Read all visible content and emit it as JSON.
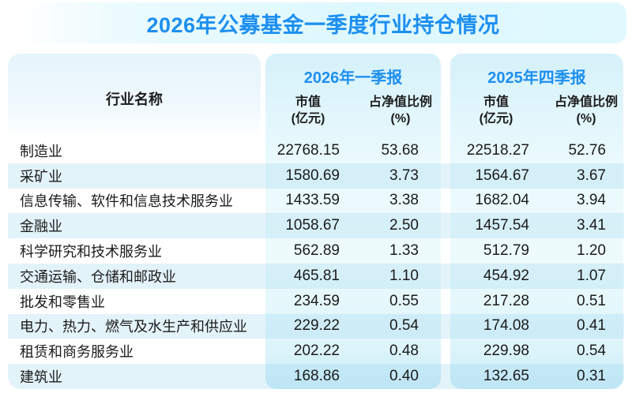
{
  "title": "2026年公募基金一季度行业持仓情况",
  "colors": {
    "accent_blue": "#1d8ff0",
    "panel_cyan": "#d6f1fa",
    "stripe_blue": "#e3f3fa"
  },
  "table": {
    "name_header": "行业名称",
    "groups": [
      {
        "label": "2026年一季报",
        "mv_header_line1": "市值",
        "mv_header_line2": "(亿元)",
        "pct_header_line1": "占净值比例",
        "pct_header_line2": "(%)"
      },
      {
        "label": "2025年四季报",
        "mv_header_line1": "市值",
        "mv_header_line2": "(亿元)",
        "pct_header_line1": "占净值比例",
        "pct_header_line2": "(%)"
      }
    ],
    "rows": [
      {
        "name": "制造业",
        "mv1": "22768.15",
        "pct1": "53.68",
        "mv2": "22518.27",
        "pct2": "52.76"
      },
      {
        "name": "采矿业",
        "mv1": "1580.69",
        "pct1": "3.73",
        "mv2": "1564.67",
        "pct2": "3.67"
      },
      {
        "name": "信息传输、软件和信息技术服务业",
        "mv1": "1433.59",
        "pct1": "3.38",
        "mv2": "1682.04",
        "pct2": "3.94"
      },
      {
        "name": "金融业",
        "mv1": "1058.67",
        "pct1": "2.50",
        "mv2": "1457.54",
        "pct2": "3.41"
      },
      {
        "name": "科学研究和技术服务业",
        "mv1": "562.89",
        "pct1": "1.33",
        "mv2": "512.79",
        "pct2": "1.20"
      },
      {
        "name": "交通运输、仓储和邮政业",
        "mv1": "465.81",
        "pct1": "1.10",
        "mv2": "454.92",
        "pct2": "1.07"
      },
      {
        "name": "批发和零售业",
        "mv1": "234.59",
        "pct1": "0.55",
        "mv2": "217.28",
        "pct2": "0.51"
      },
      {
        "name": "电力、热力、燃气及水生产和供应业",
        "mv1": "229.22",
        "pct1": "0.54",
        "mv2": "174.08",
        "pct2": "0.41"
      },
      {
        "name": "租赁和商务服务业",
        "mv1": "202.22",
        "pct1": "0.48",
        "mv2": "229.98",
        "pct2": "0.54"
      },
      {
        "name": "建筑业",
        "mv1": "168.86",
        "pct1": "0.40",
        "mv2": "132.65",
        "pct2": "0.31"
      }
    ]
  },
  "chart_data": {
    "type": "table",
    "title": "2026年公募基金一季度行业持仓情况",
    "columns": [
      "行业名称",
      "2026年一季报 市值(亿元)",
      "2026年一季报 占净值比例(%)",
      "2025年四季报 市值(亿元)",
      "2025年四季报 占净值比例(%)"
    ],
    "rows": [
      [
        "制造业",
        22768.15,
        53.68,
        22518.27,
        52.76
      ],
      [
        "采矿业",
        1580.69,
        3.73,
        1564.67,
        3.67
      ],
      [
        "信息传输、软件和信息技术服务业",
        1433.59,
        3.38,
        1682.04,
        3.94
      ],
      [
        "金融业",
        1058.67,
        2.5,
        1457.54,
        3.41
      ],
      [
        "科学研究和技术服务业",
        562.89,
        1.33,
        512.79,
        1.2
      ],
      [
        "交通运输、仓储和邮政业",
        465.81,
        1.1,
        454.92,
        1.07
      ],
      [
        "批发和零售业",
        234.59,
        0.55,
        217.28,
        0.51
      ],
      [
        "电力、热力、燃气及水生产和供应业",
        229.22,
        0.54,
        174.08,
        0.41
      ],
      [
        "租赁和商务服务业",
        202.22,
        0.48,
        229.98,
        0.54
      ],
      [
        "建筑业",
        168.86,
        0.4,
        132.65,
        0.31
      ]
    ]
  }
}
